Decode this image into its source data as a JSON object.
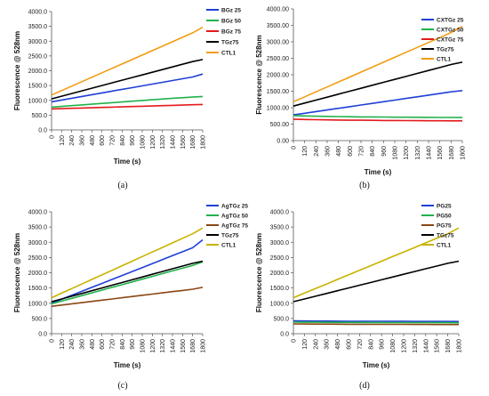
{
  "chart_data": [
    {
      "type": "line",
      "caption": "(a)",
      "ylabel": "Fluorescence @ 528nm",
      "xlabel": "Time (s)",
      "ylim": [
        0,
        4000
      ],
      "yticks": [
        "0.0",
        "500.0",
        "1000.0",
        "1500.0",
        "2000.0",
        "2500.0",
        "3000.0",
        "3500.0",
        "4000.0"
      ],
      "x": [
        0,
        120,
        240,
        360,
        480,
        600,
        720,
        840,
        960,
        1080,
        1200,
        1320,
        1440,
        1560,
        1680,
        1800
      ],
      "legend_position": "top-right",
      "series": [
        {
          "name": "BGz 25",
          "color": "#1f3fd6",
          "values": [
            950,
            1010,
            1070,
            1130,
            1190,
            1250,
            1310,
            1370,
            1430,
            1490,
            1550,
            1610,
            1670,
            1730,
            1790,
            1890
          ]
        },
        {
          "name": "BGz 50",
          "color": "#22b14c",
          "values": [
            770,
            795,
            820,
            845,
            870,
            895,
            920,
            945,
            970,
            995,
            1020,
            1045,
            1070,
            1090,
            1110,
            1130
          ]
        },
        {
          "name": "BGz 75",
          "color": "#e31a1c",
          "values": [
            710,
            720,
            730,
            740,
            750,
            760,
            770,
            780,
            790,
            800,
            810,
            820,
            830,
            840,
            850,
            860
          ]
        },
        {
          "name": "TGz75",
          "color": "#000000",
          "values": [
            1050,
            1140,
            1230,
            1320,
            1410,
            1500,
            1590,
            1680,
            1770,
            1860,
            1950,
            2040,
            2130,
            2220,
            2310,
            2380
          ]
        },
        {
          "name": "CTL1",
          "color": "#f39c12",
          "values": [
            1180,
            1330,
            1480,
            1630,
            1780,
            1930,
            2080,
            2230,
            2380,
            2530,
            2680,
            2830,
            2980,
            3130,
            3280,
            3470
          ]
        }
      ]
    },
    {
      "type": "line",
      "caption": "(b)",
      "ylabel": "Fluorescence @ 528nm",
      "xlabel": "Time (s)",
      "ylim": [
        0,
        4000
      ],
      "yticks": [
        "0.00",
        "500.00",
        "1000.00",
        "1500.00",
        "2000.00",
        "2500.00",
        "3000.00",
        "3500.00",
        "4000.00"
      ],
      "x": [
        0,
        120,
        240,
        360,
        480,
        600,
        720,
        840,
        960,
        1080,
        1200,
        1320,
        1440,
        1560,
        1680,
        1800
      ],
      "legend_position": "top-right",
      "series": [
        {
          "name": "CXTGz 25",
          "color": "#1f3fd6",
          "values": [
            780,
            830,
            880,
            930,
            980,
            1030,
            1080,
            1130,
            1180,
            1230,
            1280,
            1330,
            1380,
            1430,
            1480,
            1520
          ]
        },
        {
          "name": "CXTGz 50",
          "color": "#22b14c",
          "values": [
            760,
            750,
            740,
            735,
            730,
            725,
            720,
            718,
            715,
            712,
            710,
            708,
            706,
            704,
            702,
            700
          ]
        },
        {
          "name": "CXTGz 75",
          "color": "#e31a1c",
          "values": [
            650,
            640,
            635,
            630,
            625,
            620,
            618,
            615,
            612,
            610,
            608,
            606,
            604,
            602,
            600,
            600
          ]
        },
        {
          "name": "TGz75",
          "color": "#000000",
          "values": [
            1050,
            1140,
            1230,
            1320,
            1410,
            1500,
            1590,
            1680,
            1770,
            1860,
            1950,
            2040,
            2130,
            2220,
            2310,
            2380
          ]
        },
        {
          "name": "CTL1",
          "color": "#f39c12",
          "values": [
            1180,
            1330,
            1480,
            1630,
            1780,
            1930,
            2080,
            2230,
            2380,
            2530,
            2680,
            2830,
            2980,
            3130,
            3280,
            3470
          ]
        }
      ]
    },
    {
      "type": "line",
      "caption": "(c)",
      "ylabel": "Fluorescence @ 528nm",
      "xlabel": "Time (s)",
      "ylim": [
        0,
        4000
      ],
      "yticks": [
        "0.0",
        "500.0",
        "1000.0",
        "1500.0",
        "2000.0",
        "2500.0",
        "3000.0",
        "3500.0",
        "4000.0"
      ],
      "x": [
        0,
        120,
        240,
        360,
        480,
        600,
        720,
        840,
        960,
        1080,
        1200,
        1320,
        1440,
        1560,
        1680,
        1800
      ],
      "legend_position": "top-right",
      "series": [
        {
          "name": "AgTGz 25",
          "color": "#1f3fd6",
          "values": [
            1000,
            1130,
            1260,
            1390,
            1520,
            1650,
            1780,
            1910,
            2040,
            2170,
            2300,
            2430,
            2560,
            2690,
            2820,
            3080
          ]
        },
        {
          "name": "AgTGz 50",
          "color": "#22b14c",
          "values": [
            980,
            1070,
            1160,
            1250,
            1340,
            1430,
            1520,
            1610,
            1700,
            1790,
            1880,
            1970,
            2060,
            2150,
            2240,
            2360
          ]
        },
        {
          "name": "AgTGz 75",
          "color": "#8b4513",
          "values": [
            900,
            940,
            980,
            1020,
            1060,
            1100,
            1140,
            1180,
            1220,
            1260,
            1300,
            1340,
            1380,
            1420,
            1460,
            1520
          ]
        },
        {
          "name": "TGz75",
          "color": "#000000",
          "values": [
            1050,
            1140,
            1230,
            1320,
            1410,
            1500,
            1590,
            1680,
            1770,
            1860,
            1950,
            2040,
            2130,
            2220,
            2310,
            2380
          ]
        },
        {
          "name": "CTL1",
          "color": "#c9b200",
          "values": [
            1180,
            1330,
            1480,
            1630,
            1780,
            1930,
            2080,
            2230,
            2380,
            2530,
            2680,
            2830,
            2980,
            3130,
            3280,
            3470
          ]
        }
      ]
    },
    {
      "type": "line",
      "caption": "(d)",
      "ylabel": "Fluorescence @ 528nm",
      "xlabel": "Time (s)",
      "ylim": [
        0,
        4000
      ],
      "yticks": [
        "0.0",
        "500.0",
        "1000.0",
        "1500.0",
        "2000.0",
        "2500.0",
        "3000.0",
        "3500.0",
        "4000.0"
      ],
      "x": [
        0,
        120,
        240,
        360,
        480,
        600,
        720,
        840,
        960,
        1080,
        1200,
        1320,
        1440,
        1560,
        1680,
        1800
      ],
      "legend_position": "top-right",
      "series": [
        {
          "name": "PG25",
          "color": "#1f3fd6",
          "values": [
            420,
            418,
            416,
            414,
            412,
            410,
            410,
            408,
            408,
            406,
            406,
            404,
            404,
            402,
            402,
            400
          ]
        },
        {
          "name": "PG50",
          "color": "#22b14c",
          "values": [
            380,
            378,
            376,
            374,
            372,
            370,
            370,
            368,
            368,
            366,
            366,
            364,
            364,
            362,
            362,
            360
          ]
        },
        {
          "name": "PG75",
          "color": "#8b4513",
          "values": [
            320,
            318,
            316,
            314,
            312,
            310,
            310,
            308,
            308,
            306,
            306,
            304,
            304,
            302,
            302,
            300
          ]
        },
        {
          "name": "TGz75",
          "color": "#000000",
          "values": [
            1050,
            1140,
            1230,
            1320,
            1410,
            1500,
            1590,
            1680,
            1770,
            1860,
            1950,
            2040,
            2130,
            2220,
            2310,
            2380
          ]
        },
        {
          "name": "CTL1",
          "color": "#c9b200",
          "values": [
            1180,
            1330,
            1480,
            1630,
            1780,
            1930,
            2080,
            2230,
            2380,
            2530,
            2680,
            2830,
            2980,
            3130,
            3280,
            3470
          ]
        }
      ]
    }
  ]
}
